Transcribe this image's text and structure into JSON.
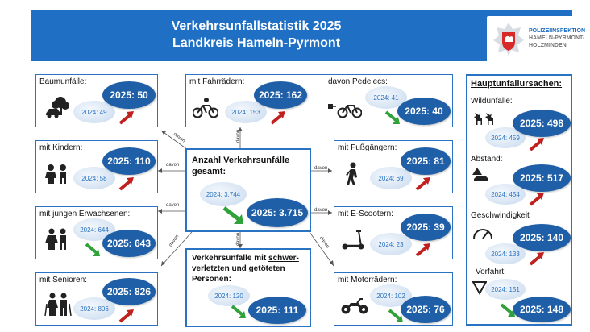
{
  "header": {
    "title_line1": "Verkehrsunfallstatistik 2025",
    "title_line2": "Landkreis Hameln-Pyrmont",
    "brand_bg": "#1f6fc4",
    "logo_line1": "POLIZEIINSPEKTION",
    "logo_line2": "HAMELN-PYRMONT/",
    "logo_line3": "HOLZMINDEN"
  },
  "colors": {
    "new_circle": "#1f5fa8",
    "up_arrow": "#c0211f",
    "down_arrow": "#2fa23a",
    "border": "#2a73c2"
  },
  "center": {
    "title_a": "Anzahl ",
    "title_b": "Verkehrsunfälle",
    "title_c": "gesamt:",
    "old": "2024: 3.744",
    "new": "2025: 3.715",
    "trend": "down"
  },
  "severe": {
    "title_a": "Verkehrsunfälle mit ",
    "title_b": "schwer-",
    "title_c": "verletzten und getöteten",
    "title_d": "Personen:",
    "old": "2024: 120",
    "new": "2025: 111",
    "trend": "down"
  },
  "left_boxes": [
    {
      "label": "Baumunfälle:",
      "old": "2024: 49",
      "new": "2025: 50",
      "trend": "up",
      "icon": "tree-crash-icon"
    },
    {
      "label": "mit Kindern:",
      "old": "2024: 58",
      "new": "2025: 110",
      "trend": "up",
      "icon": "children-icon"
    },
    {
      "label": "mit jungen Erwachsenen:",
      "old": "2024: 644",
      "new": "2025: 643",
      "trend": "down",
      "icon": "young-adults-icon"
    },
    {
      "label": "mit Senioren:",
      "old": "2024: 806",
      "new": "2025: 826",
      "trend": "up",
      "icon": "seniors-icon"
    }
  ],
  "top_box": {
    "label_a": "mit Fahrrädern:",
    "old_a": "2024: 153",
    "new_a": "2025: 162",
    "trend_a": "up",
    "label_b": "davon Pedelecs:",
    "old_b": "2024: 41",
    "new_b": "2025: 40",
    "trend_b": "down"
  },
  "mid_boxes": [
    {
      "label": "mit Fußgängern:",
      "old": "2024: 69",
      "new": "2025: 81",
      "trend": "up",
      "icon": "pedestrian-icon"
    },
    {
      "label": "mit E-Scootern:",
      "old": "2024: 23",
      "new": "2025: 39",
      "trend": "up",
      "icon": "scooter-icon"
    },
    {
      "label": "mit Motorrädern:",
      "old": "2024: 102",
      "new": "2025: 76",
      "trend": "down",
      "icon": "motorcycle-icon"
    }
  ],
  "causes": {
    "title": "Hauptunfallursachen:",
    "items": [
      {
        "label": "Wildunfälle:",
        "old": "2024: 459",
        "new": "2025: 498",
        "trend": "up",
        "icon": "deer-icon"
      },
      {
        "label": "Abstand:",
        "old": "2024: 454",
        "new": "2025: 517",
        "trend": "up",
        "icon": "distance-icon"
      },
      {
        "label": "Geschwindigkeit",
        "old": "2024: 133",
        "new": "2025: 140",
        "trend": "up",
        "icon": "speedometer-icon"
      },
      {
        "label": "Vorfahrt:",
        "old": "2024: 151",
        "new": "2025: 148",
        "trend": "down",
        "icon": "yield-sign-icon"
      }
    ]
  },
  "connector_label": "davon"
}
